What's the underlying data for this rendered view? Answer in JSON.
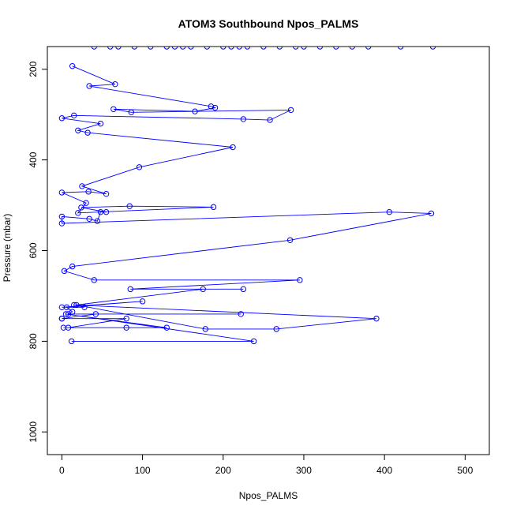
{
  "chart_data": {
    "type": "line",
    "title": "ATOM3 Southbound Npos_PALMS",
    "xlabel": "Npos_PALMS",
    "ylabel": "Pressure (mbar)",
    "xlim": [
      -18,
      530
    ],
    "ylim": [
      1050,
      150
    ],
    "y_reversed": true,
    "x_ticks": [
      0,
      100,
      200,
      300,
      400,
      500
    ],
    "y_ticks": [
      200,
      400,
      600,
      800,
      1000
    ],
    "grid": false,
    "legend": "none",
    "marker": "open-circle",
    "color": "#0000ff",
    "series": [
      {
        "points": [
          [
            12,
            800
          ],
          [
            238,
            800
          ],
          [
            5,
            740
          ],
          [
            130,
            770
          ],
          [
            80,
            770
          ],
          [
            2,
            770
          ],
          [
            8,
            770
          ],
          [
            80,
            750
          ],
          [
            0,
            750
          ],
          [
            0,
            750
          ],
          [
            42,
            740
          ],
          [
            222,
            740
          ],
          [
            8,
            740
          ],
          [
            13,
            735
          ],
          [
            6,
            725
          ],
          [
            100,
            712
          ],
          [
            0,
            725
          ],
          [
            28,
            725
          ],
          [
            15,
            720
          ],
          [
            390,
            750
          ],
          [
            266,
            773
          ],
          [
            178,
            773
          ],
          [
            18,
            720
          ],
          [
            175,
            685
          ],
          [
            225,
            685
          ],
          [
            85,
            685
          ],
          [
            295,
            665
          ],
          [
            40,
            665
          ],
          [
            3,
            645
          ],
          [
            13,
            635
          ],
          [
            283,
            577
          ],
          [
            458,
            518
          ],
          [
            406,
            515
          ],
          [
            0,
            540
          ],
          [
            0,
            525
          ],
          [
            34,
            530
          ],
          [
            44,
            535
          ],
          [
            48,
            515
          ],
          [
            55,
            515
          ],
          [
            24,
            505
          ],
          [
            84,
            502
          ],
          [
            188,
            504
          ],
          [
            20,
            517
          ],
          [
            30,
            495
          ],
          [
            0,
            472
          ],
          [
            33,
            470
          ],
          [
            55,
            475
          ],
          [
            25,
            458
          ],
          [
            96,
            416
          ],
          [
            212,
            372
          ],
          [
            32,
            340
          ],
          [
            20,
            335
          ],
          [
            48,
            320
          ],
          [
            0,
            308
          ],
          [
            15,
            302
          ],
          [
            225,
            310
          ],
          [
            258,
            312
          ],
          [
            284,
            290
          ],
          [
            86,
            295
          ],
          [
            64,
            288
          ],
          [
            165,
            293
          ],
          [
            190,
            285
          ],
          [
            185,
            282
          ],
          [
            34,
            237
          ],
          [
            66,
            233
          ],
          [
            13,
            193
          ]
        ]
      },
      {
        "points": [
          [
            90,
            150
          ],
          [
            160,
            150
          ],
          [
            230,
            150
          ],
          [
            300,
            150
          ],
          [
            380,
            150
          ],
          [
            460,
            150
          ],
          [
            60,
            150
          ],
          [
            130,
            150
          ],
          [
            200,
            150
          ],
          [
            270,
            150
          ],
          [
            340,
            150
          ],
          [
            420,
            150
          ],
          [
            110,
            150
          ],
          [
            180,
            150
          ],
          [
            250,
            150
          ],
          [
            320,
            150
          ],
          [
            40,
            150
          ],
          [
            150,
            150
          ],
          [
            220,
            150
          ],
          [
            290,
            150
          ],
          [
            360,
            150
          ],
          [
            70,
            150
          ],
          [
            140,
            150
          ],
          [
            210,
            150
          ]
        ]
      }
    ]
  }
}
